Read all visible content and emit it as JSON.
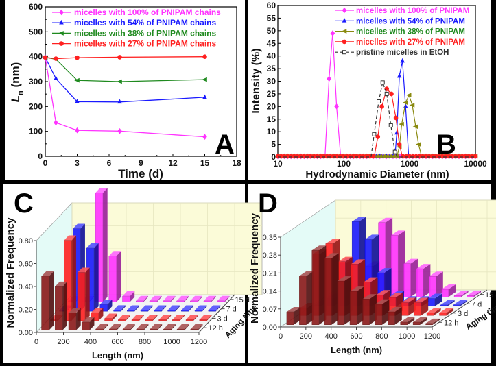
{
  "chart_data": [
    {
      "panel": "A",
      "type": "line",
      "letter": "A",
      "xlabel": "Time (d)",
      "ylabel_parts": [
        "L",
        "n",
        " (nm)"
      ],
      "xlim": [
        0,
        18
      ],
      "ylim": [
        0,
        600
      ],
      "xticks": [
        0,
        3,
        6,
        9,
        12,
        15,
        18
      ],
      "yticks": [
        0,
        100,
        200,
        300,
        400,
        500,
        600
      ],
      "legend_position": "top",
      "series": [
        {
          "name": "micelles with 100% of PNIPAM chains",
          "color": "#ff33ff",
          "marker": "diamond",
          "x": [
            0,
            1,
            3,
            7,
            15
          ],
          "y": [
            397,
            135,
            104,
            101,
            78
          ]
        },
        {
          "name": "micelles with 54% of PNIPAM chains",
          "color": "#1a1aff",
          "marker": "triangle-up",
          "x": [
            0,
            1,
            3,
            7,
            15
          ],
          "y": [
            397,
            312,
            219,
            218,
            237
          ]
        },
        {
          "name": "micelles with 38% of PNIPAM chains",
          "color": "#1f8a1f",
          "marker": "triangle-left",
          "x": [
            0,
            1,
            3,
            7,
            15
          ],
          "y": [
            397,
            390,
            305,
            300,
            308
          ]
        },
        {
          "name": "micelles with 27% of PNIPAM chains",
          "color": "#ff2020",
          "marker": "circle",
          "x": [
            0,
            1,
            3,
            7,
            15
          ],
          "y": [
            397,
            392,
            396,
            398,
            400
          ]
        }
      ]
    },
    {
      "panel": "B",
      "type": "line",
      "letter": "B",
      "xlabel": "Hydrodynamic Diameter (nm)",
      "ylabel": "Intensity (%)",
      "xscale": "log",
      "xlim": [
        10,
        10000
      ],
      "ylim": [
        0,
        60
      ],
      "xticks": [
        10,
        100,
        1000,
        10000
      ],
      "yticks": [
        0,
        5,
        10,
        15,
        20,
        25,
        30,
        35,
        40,
        45,
        50,
        55,
        60
      ],
      "legend_position": "top-right",
      "series": [
        {
          "name": "micelles with 100% of PNIPAM",
          "color": "#ff33ff",
          "marker": "diamond",
          "dash": false,
          "x": [
            10,
            52,
            60,
            68,
            78,
            90,
            10000
          ],
          "y": [
            0,
            0,
            31,
            49,
            20,
            0,
            0
          ]
        },
        {
          "name": "micelles with 54% of PNIPAM",
          "color": "#1a1aff",
          "marker": "triangle-up",
          "dash": false,
          "x": [
            10,
            600,
            640,
            700,
            780,
            870,
            970,
            10000
          ],
          "y": [
            0,
            0,
            9.5,
            32,
            38,
            20,
            0,
            0
          ]
        },
        {
          "name": "micelles with 38% of PNIPAM",
          "color": "#8a8a10",
          "label_color": "#1f8a1f",
          "marker": "triangle-left",
          "dash": false,
          "x": [
            10,
            640,
            700,
            760,
            870,
            980,
            1100,
            1240,
            1370,
            1530,
            10000
          ],
          "y": [
            0,
            0,
            4,
            13,
            21.5,
            24.5,
            20.5,
            12,
            5,
            0,
            0
          ]
        },
        {
          "name": "micelles with 27% of PNIPAM",
          "color": "#ff2020",
          "marker": "circle",
          "dash": false,
          "x": [
            10,
            290,
            330,
            380,
            450,
            530,
            620,
            700,
            780,
            10000
          ],
          "y": [
            0,
            0,
            8,
            20,
            27,
            25,
            15.5,
            5,
            0,
            0
          ]
        },
        {
          "name": "pristine micelles in EtOH",
          "color": "#333333",
          "marker": "open-square",
          "dash": true,
          "x": [
            10,
            260,
            290,
            340,
            390,
            450,
            520,
            600,
            650,
            10000
          ],
          "y": [
            0,
            0,
            9,
            22,
            29.5,
            25,
            12.5,
            2,
            0,
            0
          ]
        }
      ]
    },
    {
      "panel": "C",
      "type": "bar3d",
      "letter": "C",
      "xlabel": "Length (nm)",
      "ylabel": "Normalized Frequency",
      "zlabel": "Aging time",
      "xlim": [
        0,
        1200
      ],
      "ylim": [
        0,
        0.8
      ],
      "xticks": [
        0,
        200,
        400,
        600,
        800,
        1000,
        1200
      ],
      "yticks": [
        "0.00",
        "0.20",
        "0.40",
        "0.60",
        "0.80"
      ],
      "bins": [
        50,
        150,
        250,
        350,
        450,
        550,
        650,
        750,
        850,
        950,
        1050,
        1150
      ],
      "series": [
        {
          "name": "12 h",
          "color": "#8b1a1a",
          "values": [
            0.47,
            0.38,
            0.15,
            0.07,
            0.01,
            0.01,
            0.005,
            0.005,
            0.005,
            0.005,
            0.005,
            0.005
          ]
        },
        {
          "name": "3 d",
          "color": "#ff2020",
          "values": [
            0.0,
            0.7,
            0.42,
            0.07,
            0.02,
            0.005,
            0.005,
            0.005,
            0.005,
            0.005,
            0.005,
            0.005
          ]
        },
        {
          "name": "7 d",
          "color": "#1a1aff",
          "values": [
            0.0,
            0.72,
            0.55,
            0.06,
            0.01,
            0.005,
            0.005,
            0.005,
            0.005,
            0.005,
            0.005,
            0.005
          ]
        },
        {
          "name": "15 d",
          "color": "#ff33ff",
          "values": [
            0.0,
            0.0,
            0.95,
            0.4,
            0.05,
            0.005,
            0.005,
            0.005,
            0.005,
            0.005,
            0.005,
            0.005
          ]
        }
      ]
    },
    {
      "panel": "D",
      "type": "bar3d",
      "letter": "D",
      "xlabel": "Length (nm)",
      "ylabel": "Normalized Frequency",
      "zlabel": "Aging time",
      "xlim": [
        0,
        1200
      ],
      "ylim": [
        0,
        0.35
      ],
      "xticks": [
        0,
        200,
        400,
        600,
        800,
        1000,
        1200
      ],
      "yticks": [
        "0.00",
        "0.07",
        "0.14",
        "0.21",
        "0.28",
        "0.35"
      ],
      "bins": [
        50,
        150,
        250,
        350,
        450,
        550,
        650,
        750,
        850,
        950,
        1050,
        1150
      ],
      "series": [
        {
          "name": "12 h",
          "color": "#8b1a1a",
          "values": [
            0.05,
            0.19,
            0.29,
            0.26,
            0.17,
            0.13,
            0.1,
            0.08,
            0.05,
            0.01,
            0.01,
            0.005
          ]
        },
        {
          "name": "3 d",
          "color": "#ff2020",
          "values": [
            0.03,
            0.24,
            0.28,
            0.21,
            0.2,
            0.13,
            0.08,
            0.07,
            0.05,
            0.05,
            0.01,
            0.01
          ]
        },
        {
          "name": "7 d",
          "color": "#1a1aff",
          "values": [
            0.0,
            0.03,
            0.17,
            0.33,
            0.26,
            0.13,
            0.04,
            0.02,
            0.02,
            0.03,
            0.005,
            0.005
          ]
        },
        {
          "name": "15 d",
          "color": "#ff33ff",
          "values": [
            0.0,
            0.0,
            0.05,
            0.12,
            0.29,
            0.24,
            0.13,
            0.11,
            0.08,
            0.03,
            0.005,
            0.005
          ]
        }
      ]
    }
  ]
}
